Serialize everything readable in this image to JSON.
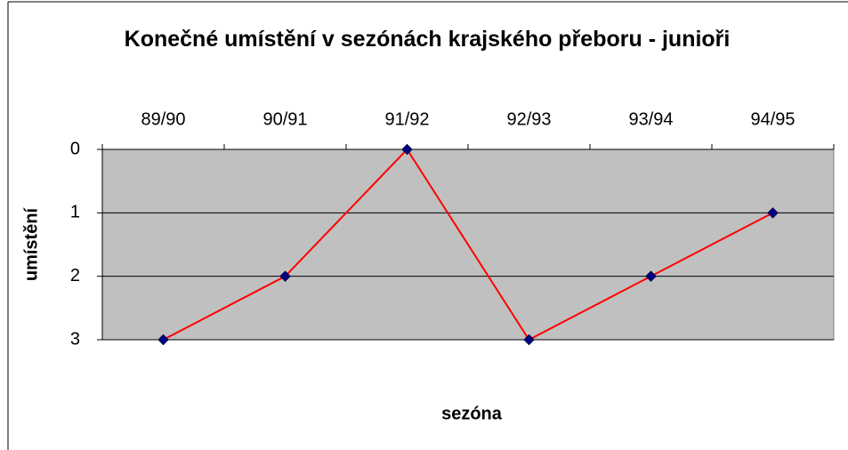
{
  "chart_data": {
    "type": "line",
    "title": "Konečné umístění v sezónách krajského přeboru - junioři",
    "x_label": "sezóna",
    "y_label": "umístění",
    "categories": [
      "89/90",
      "90/91",
      "91/92",
      "92/93",
      "93/94",
      "94/95"
    ],
    "series": [
      {
        "name": "umístění",
        "color": "#ff0000",
        "marker_color": "#000080",
        "values": [
          3,
          2,
          0,
          3,
          2,
          1
        ]
      }
    ],
    "ylim": [
      3,
      0
    ],
    "yticks": [
      0,
      1,
      2,
      3
    ],
    "grid": true,
    "plot_background": "#c0c0c0"
  }
}
